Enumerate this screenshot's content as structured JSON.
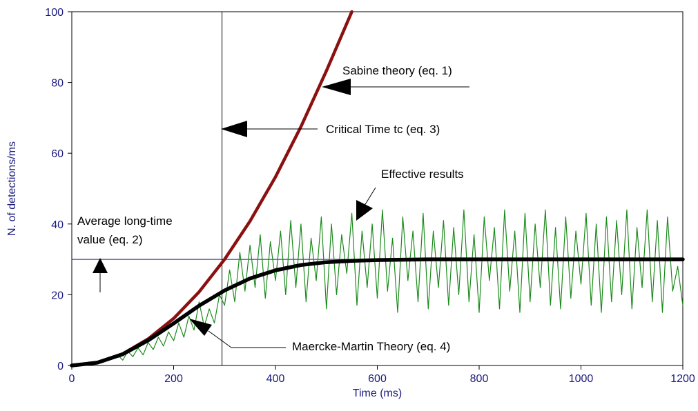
{
  "chart_data": {
    "type": "line",
    "title": "",
    "xlabel": "Time (ms)",
    "ylabel": "N. of detections/ms",
    "xlim": [
      0,
      1200
    ],
    "ylim": [
      0,
      100
    ],
    "x_ticks": [
      "0",
      "200",
      "400",
      "600",
      "800",
      "1000",
      "1200"
    ],
    "y_ticks": [
      "0",
      "20",
      "40",
      "60",
      "80",
      "100"
    ],
    "grid": false,
    "legend": "none",
    "colors": {
      "sabine": "#8b1010",
      "maercke_martin": "#000000",
      "effective": "#1a8a1a",
      "average": "#1a1a80",
      "critical": "#000000",
      "axis_text": "#1a1a80"
    },
    "series": [
      {
        "key": "sabine",
        "x": [
          0,
          50,
          100,
          150,
          200,
          250,
          300,
          350,
          400,
          450,
          500,
          550
        ],
        "y": [
          0,
          0.8,
          3.3,
          7.5,
          13.3,
          20.8,
          30.0,
          40.8,
          53.3,
          67.5,
          83.3,
          100.0
        ]
      },
      {
        "key": "maercke_martin",
        "x": [
          0,
          50,
          100,
          150,
          200,
          250,
          300,
          350,
          400,
          450,
          500,
          550,
          600,
          650,
          700,
          800,
          900,
          1000,
          1100,
          1200
        ],
        "y": [
          0,
          0.8,
          3.2,
          7.1,
          11.9,
          16.9,
          21.2,
          24.6,
          26.9,
          28.4,
          29.2,
          29.6,
          29.8,
          29.9,
          30,
          30,
          30,
          30,
          30,
          30
        ]
      },
      {
        "key": "effective",
        "x": [
          80,
          90,
          100,
          110,
          120,
          130,
          140,
          150,
          160,
          170,
          180,
          190,
          200,
          210,
          220,
          230,
          240,
          250,
          260,
          270,
          280,
          290,
          300,
          310,
          320,
          330,
          340,
          350,
          360,
          370,
          380,
          390,
          400,
          410,
          420,
          430,
          440,
          450,
          460,
          470,
          480,
          490,
          500,
          510,
          520,
          530,
          540,
          550,
          560,
          570,
          580,
          590,
          600,
          610,
          620,
          630,
          640,
          650,
          660,
          670,
          680,
          690,
          700,
          710,
          720,
          730,
          740,
          750,
          760,
          770,
          780,
          790,
          800,
          810,
          820,
          830,
          840,
          850,
          860,
          870,
          880,
          890,
          900,
          910,
          920,
          930,
          940,
          950,
          960,
          970,
          980,
          990,
          1000,
          1010,
          1020,
          1030,
          1040,
          1050,
          1060,
          1070,
          1080,
          1090,
          1100,
          1110,
          1120,
          1130,
          1140,
          1150,
          1160,
          1170,
          1180,
          1190,
          1200
        ],
        "y": [
          2,
          3,
          1.5,
          4,
          2.5,
          5,
          3,
          6.5,
          4.5,
          8,
          5.5,
          9.5,
          7,
          12,
          8,
          14,
          10,
          18,
          11,
          16,
          12,
          20,
          17,
          27,
          18,
          32,
          21,
          34,
          22,
          37,
          19,
          35,
          24,
          38,
          20,
          41,
          22,
          40,
          18,
          36,
          24,
          42,
          16,
          40,
          20,
          37,
          26,
          43,
          17,
          38,
          22,
          40,
          19,
          44,
          21,
          36,
          15,
          42,
          24,
          38,
          18,
          43,
          16,
          38,
          22,
          41,
          17,
          39,
          20,
          44,
          18,
          37,
          15,
          42,
          24,
          39,
          16,
          44,
          21,
          38,
          15,
          43,
          18,
          40,
          22,
          44,
          17,
          39,
          16,
          42,
          19,
          38,
          23,
          43,
          17,
          40,
          15,
          42,
          18,
          41,
          20,
          44,
          16,
          39,
          22,
          44,
          18,
          41,
          15,
          42,
          21,
          28,
          17
        ]
      }
    ],
    "reference_lines": {
      "average_value": 30,
      "critical_time": 295
    },
    "annotations": {
      "sabine": "Sabine theory (eq. 1)",
      "critical": "Critical Time tc (eq. 3)",
      "effective": "Effective results",
      "average_line1": "Average long-time",
      "average_line2": "value (eq. 2)",
      "maercke": "Maercke-Martin Theory (eq. 4)"
    }
  }
}
